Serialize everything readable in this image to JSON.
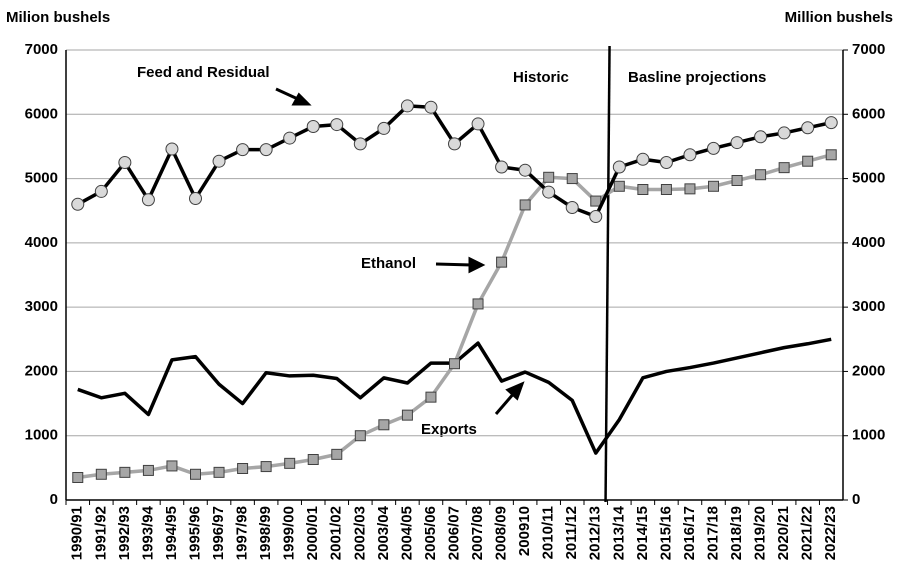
{
  "chart_data": {
    "type": "line",
    "y_label": "Milion bushels",
    "y2_label": "Million bushels",
    "annotations": [
      "Feed and Residual",
      "Ethanol",
      "Exports",
      "Historic",
      "Basline projections"
    ],
    "categories": [
      "1990/91",
      "1991/92",
      "1992/93",
      "1993/94",
      "1994/95",
      "1995/96",
      "1996/97",
      "1997/98",
      "1998/99",
      "1999/00",
      "2000/01",
      "2001/02",
      "2002/03",
      "2003/04",
      "2004/05",
      "2005/06",
      "2006/07",
      "2007/08",
      "2008/09",
      "200910",
      "2010/11",
      "2011/12",
      "2012/13",
      "2013/14",
      "2014/15",
      "2015/16",
      "2016/17",
      "2017/18",
      "2018/19",
      "2019/20",
      "2020/21",
      "2021/22",
      "2022/23"
    ],
    "series": [
      {
        "name": "Feed and Residual",
        "color": "#000000",
        "marker": "circle",
        "marker_color": "#d9d9d9",
        "values": [
          4600,
          4800,
          5250,
          4670,
          5460,
          4690,
          5270,
          5450,
          5450,
          5630,
          5810,
          5840,
          5540,
          5780,
          6130,
          6110,
          5540,
          5850,
          5180,
          5130,
          4790,
          4550,
          4410,
          5180,
          5300,
          5250,
          5370,
          5470,
          5560,
          5650,
          5710,
          5790,
          5870
        ]
      },
      {
        "name": "Ethanol",
        "color": "#a6a6a6",
        "marker": "square",
        "marker_color": "#a6a6a6",
        "values": [
          350,
          400,
          430,
          460,
          530,
          400,
          430,
          490,
          520,
          570,
          630,
          710,
          1000,
          1170,
          1320,
          1600,
          2120,
          3050,
          3700,
          4590,
          5020,
          5000,
          4650,
          4880,
          4830,
          4830,
          4840,
          4880,
          4970,
          5060,
          5170,
          5270,
          5370
        ]
      },
      {
        "name": "Exports",
        "color": "#000000",
        "marker": "none",
        "values": [
          1720,
          1590,
          1660,
          1330,
          2180,
          2230,
          1800,
          1500,
          1980,
          1930,
          1940,
          1890,
          1590,
          1900,
          1820,
          2130,
          2130,
          2440,
          1850,
          1990,
          1830,
          1550,
          730,
          1250,
          1900,
          2000,
          2060,
          2130,
          2210,
          2290,
          2370,
          2430,
          2500
        ]
      }
    ],
    "ylim": [
      0,
      7000
    ],
    "yticks": [
      0,
      1000,
      2000,
      3000,
      4000,
      5000,
      6000,
      7000
    ],
    "y2lim": [
      0,
      7000
    ],
    "y2ticks": [
      0,
      1000,
      2000,
      3000,
      4000,
      5000,
      6000,
      7000
    ],
    "grid": true
  }
}
